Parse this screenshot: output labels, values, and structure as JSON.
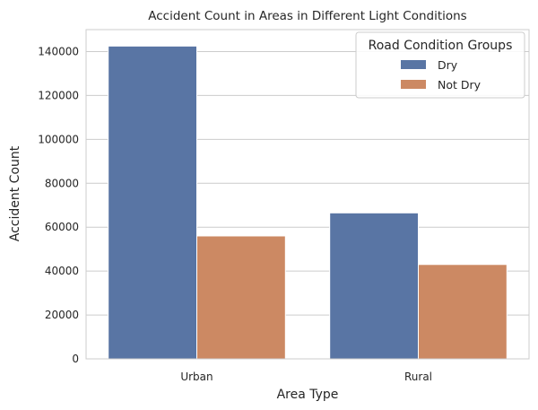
{
  "chart_data": {
    "type": "bar",
    "title": "Accident Count in Areas in Different Light Conditions",
    "xlabel": "Area Type",
    "ylabel": "Accident Count",
    "categories": [
      "Urban",
      "Rural"
    ],
    "series": [
      {
        "name": "Dry",
        "values": [
          142500,
          66500
        ],
        "color": "#5975a4"
      },
      {
        "name": "Not Dry",
        "values": [
          56000,
          43000
        ],
        "color": "#cc8963"
      }
    ],
    "ylim": [
      0,
      150000
    ],
    "yticks": [
      0,
      20000,
      40000,
      60000,
      80000,
      100000,
      120000,
      140000
    ],
    "ytick_labels": [
      "0",
      "20000",
      "40000",
      "60000",
      "80000",
      "100000",
      "120000",
      "140000"
    ],
    "grid": "horizontal",
    "legend": {
      "title": "Road Condition Groups",
      "placement": "top-right"
    }
  }
}
